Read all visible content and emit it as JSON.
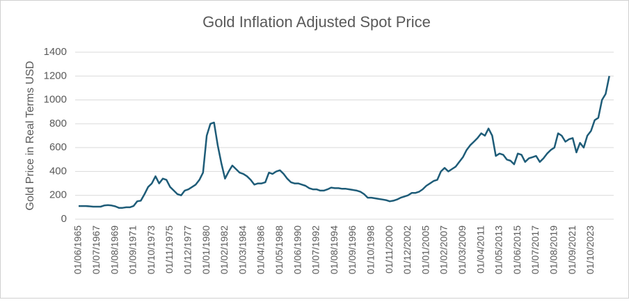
{
  "chart_data": {
    "type": "line",
    "title": "Gold Inflation Adjusted Spot Price",
    "y_label": "Gold Price in Real Terms USD",
    "categories": [
      "01/06/1965",
      null,
      null,
      null,
      null,
      "01/07/1967",
      null,
      null,
      null,
      null,
      "01/08/1969",
      null,
      null,
      null,
      null,
      "01/09/1971",
      null,
      null,
      null,
      null,
      "01/10/1973",
      null,
      null,
      null,
      null,
      "01/11/1975",
      null,
      null,
      null,
      null,
      "01/12/1977",
      null,
      null,
      null,
      null,
      "01/01/1980",
      null,
      null,
      null,
      null,
      "01/02/1982",
      null,
      null,
      null,
      null,
      "01/03/1984",
      null,
      null,
      null,
      null,
      "01/04/1986",
      null,
      null,
      null,
      null,
      "01/05/1988",
      null,
      null,
      null,
      null,
      "01/06/1990",
      null,
      null,
      null,
      null,
      "01/07/1992",
      null,
      null,
      null,
      null,
      "01/08/1994",
      null,
      null,
      null,
      null,
      "01/09/1996",
      null,
      null,
      null,
      null,
      "01/10/1998",
      null,
      null,
      null,
      null,
      "01/11/2000",
      null,
      null,
      null,
      null,
      "01/12/2002",
      null,
      null,
      null,
      null,
      "01/01/2005",
      null,
      null,
      null,
      null,
      "01/02/2007",
      null,
      null,
      null,
      null,
      "01/03/2009",
      null,
      null,
      null,
      null,
      "01/04/2011",
      null,
      null,
      null,
      null,
      "01/05/2013",
      null,
      null,
      null,
      null,
      "01/06/2015",
      null,
      null,
      null,
      null,
      "01/07/2017",
      null,
      null,
      null,
      null,
      "01/08/2019",
      null,
      null,
      null,
      null,
      "01/09/2021",
      null,
      null,
      null,
      null,
      "01/10/2023",
      null,
      null,
      null,
      null,
      null
    ],
    "series": [
      {
        "name": "Gold Price",
        "color": "#1e5c78",
        "values": [
          110,
          110,
          110,
          108,
          105,
          105,
          105,
          115,
          118,
          115,
          108,
          95,
          95,
          100,
          100,
          110,
          150,
          155,
          210,
          270,
          300,
          360,
          300,
          340,
          330,
          270,
          240,
          210,
          200,
          240,
          250,
          270,
          290,
          330,
          390,
          700,
          800,
          810,
          620,
          470,
          340,
          400,
          450,
          420,
          390,
          380,
          360,
          330,
          290,
          300,
          300,
          310,
          390,
          380,
          400,
          410,
          380,
          340,
          310,
          300,
          300,
          290,
          280,
          260,
          250,
          250,
          240,
          240,
          250,
          265,
          260,
          260,
          255,
          255,
          250,
          245,
          240,
          230,
          210,
          180,
          180,
          175,
          170,
          165,
          160,
          150,
          155,
          165,
          180,
          190,
          200,
          220,
          220,
          230,
          250,
          280,
          300,
          320,
          330,
          400,
          430,
          400,
          420,
          440,
          480,
          520,
          580,
          620,
          650,
          680,
          720,
          700,
          760,
          700,
          530,
          550,
          540,
          500,
          490,
          460,
          550,
          540,
          480,
          510,
          520,
          530,
          480,
          510,
          550,
          580,
          600,
          720,
          700,
          650,
          670,
          680,
          560,
          640,
          600,
          700,
          740,
          830,
          850,
          1000,
          1050,
          1200
        ]
      }
    ],
    "ylim": [
      0,
      1400
    ],
    "yticks": [
      0,
      200,
      400,
      600,
      800,
      1000,
      1200,
      1400
    ],
    "grid": true
  }
}
